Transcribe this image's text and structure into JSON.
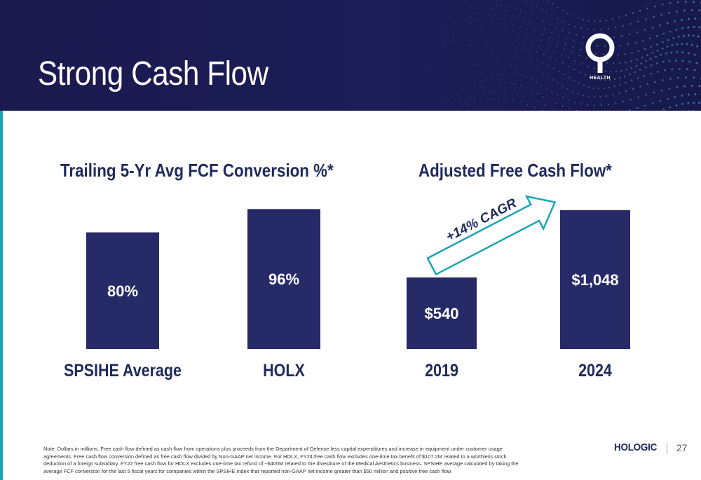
{
  "slide": {
    "title": "Strong Cash Flow",
    "health_logo_text": "HEALTH",
    "footnote": "Note: Dollars in millions. Free cash flow defined as cash flow from operations plus proceeds from the Department of Defense less capital expenditures and increase in equipment under customer usage agreements. Free cash flow conversion defined as free cash flow divided by Non-GAAP net income. For HOLX, FY24 free cash flow excludes one-time tax benefit of $107.2M related to a worthless stock deduction of a foreign subsidiary. FY22 free cash flow for HOLX excludes one-time tax refund of ~$400M related to the divestiture of the Medical Aesthetics business. SPSIHE average calculated by taking the average FCF conversion for the last 5 fiscal years for companies within the SPSIHE index that reported non-GAAP net income greater than $50 million and positive free cash flow.",
    "company_logo_text": "HOLOGIC",
    "page_number": "27",
    "colors": {
      "header_bg": "#1d1d58",
      "bar": "#262a66",
      "text_navy": "#1f2a5c",
      "accent_teal": "#1ca3b5"
    }
  },
  "chart_data": [
    {
      "type": "bar",
      "title": "Trailing 5-Yr Avg FCF Conversion %*",
      "categories": [
        "SPSIHE Average",
        "HOLX"
      ],
      "values": [
        80,
        96
      ],
      "data_labels": [
        "80%",
        "96%"
      ],
      "xlabel": "",
      "ylabel": "",
      "ylim": [
        0,
        100
      ],
      "grid": false,
      "legend": "none"
    },
    {
      "type": "bar",
      "title": "Adjusted Free Cash Flow*",
      "categories": [
        "2019",
        "2024"
      ],
      "values": [
        540,
        1048
      ],
      "data_labels": [
        "$540",
        "$1,048"
      ],
      "xlabel": "",
      "ylabel": "",
      "ylim": [
        0,
        1100
      ],
      "grid": false,
      "legend": "none",
      "annotation": {
        "text": "+14% CAGR",
        "style": "arrow"
      }
    }
  ]
}
